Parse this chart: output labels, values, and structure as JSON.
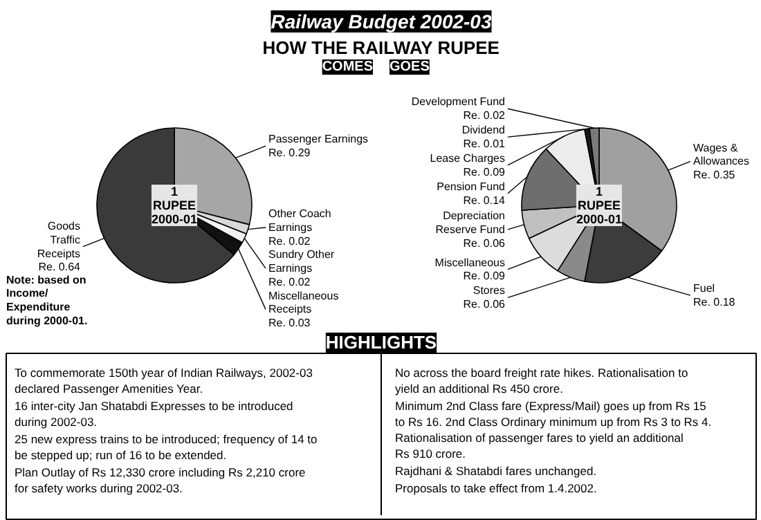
{
  "chart_data": [
    {
      "type": "other",
      "title": "Railway Budget 2002-03",
      "subtitle": "HOW THE RAILWAY RUPEE"
    },
    {
      "type": "pie",
      "title": "COMES",
      "categories": [
        "Passenger Earnings",
        "Other Coach Earnings",
        "Sundry Other Earnings",
        "Miscellaneous Receipts",
        "Goods Traffic Receipts"
      ],
      "values": [
        0.29,
        0.02,
        0.02,
        0.03,
        0.64
      ],
      "value_labels": [
        "Re. 0.29",
        "Re. 0.02",
        "Re. 0.02",
        "Re. 0.03",
        "Re. 0.64"
      ],
      "colors": [
        "#a6a6a6",
        "#d9d9d9",
        "#f2f2f2",
        "#111111",
        "#3a3a3a"
      ],
      "annotations": [
        "1",
        "RUPEE",
        "2000-01",
        "Note: based on Income/ Expenditure during 2000-01."
      ]
    },
    {
      "type": "pie",
      "title": "GOES",
      "categories": [
        "Wages & Allowances",
        "Fuel",
        "Stores",
        "Miscellaneous",
        "Depreciation Reserve Fund",
        "Pension Fund",
        "Lease Charges",
        "Dividend",
        "Development Fund"
      ],
      "values": [
        0.35,
        0.18,
        0.06,
        0.09,
        0.06,
        0.14,
        0.09,
        0.01,
        0.02
      ],
      "value_labels": [
        "Re. 0.35",
        "Re. 0.18",
        "Re. 0.06",
        "Re. 0.09",
        "Re. 0.06",
        "Re. 0.14",
        "Re. 0.09",
        "Re. 0.01",
        "Re. 0.02"
      ],
      "colors": [
        "#a0a0a0",
        "#3c3c3c",
        "#8a8a8a",
        "#dcdcdc",
        "#c0c0c0",
        "#6e6e6e",
        "#ececec",
        "#1a1a1a",
        "#7a7a7a"
      ],
      "annotations": [
        "1",
        "RUPEE",
        "2000-01"
      ]
    },
    {
      "type": "other",
      "title": "HIGHLIGHTS",
      "annotations": [
        "To commemorate 150th year of Indian Railways, 2002-03 declared Passenger Amenities Year.",
        "16 inter-city Jan Shatabdi Expresses to be introduced during 2002-03.",
        "25 new express trains to be introduced; frequency of 14 to be stepped up; run of 16 to be extended.",
        "Plan Outlay of Rs 12,330 crore including Rs 2,210 crore for safety works during 2002-03.",
        "No across the board freight rate hikes. Rationalisation to yield an additional Rs 450 crore.",
        "Minimum 2nd Class fare (Express/Mail) goes up from Rs 15 to Rs 16. 2nd Class Ordinary minimum up from Rs 3 to Rs 4. Rationalisation of passenger fares to yield an additional Rs 910 crore.",
        "Rajdhani & Shatabdi fares unchanged.",
        "Proposals to take effect from 1.4.2002."
      ]
    }
  ]
}
